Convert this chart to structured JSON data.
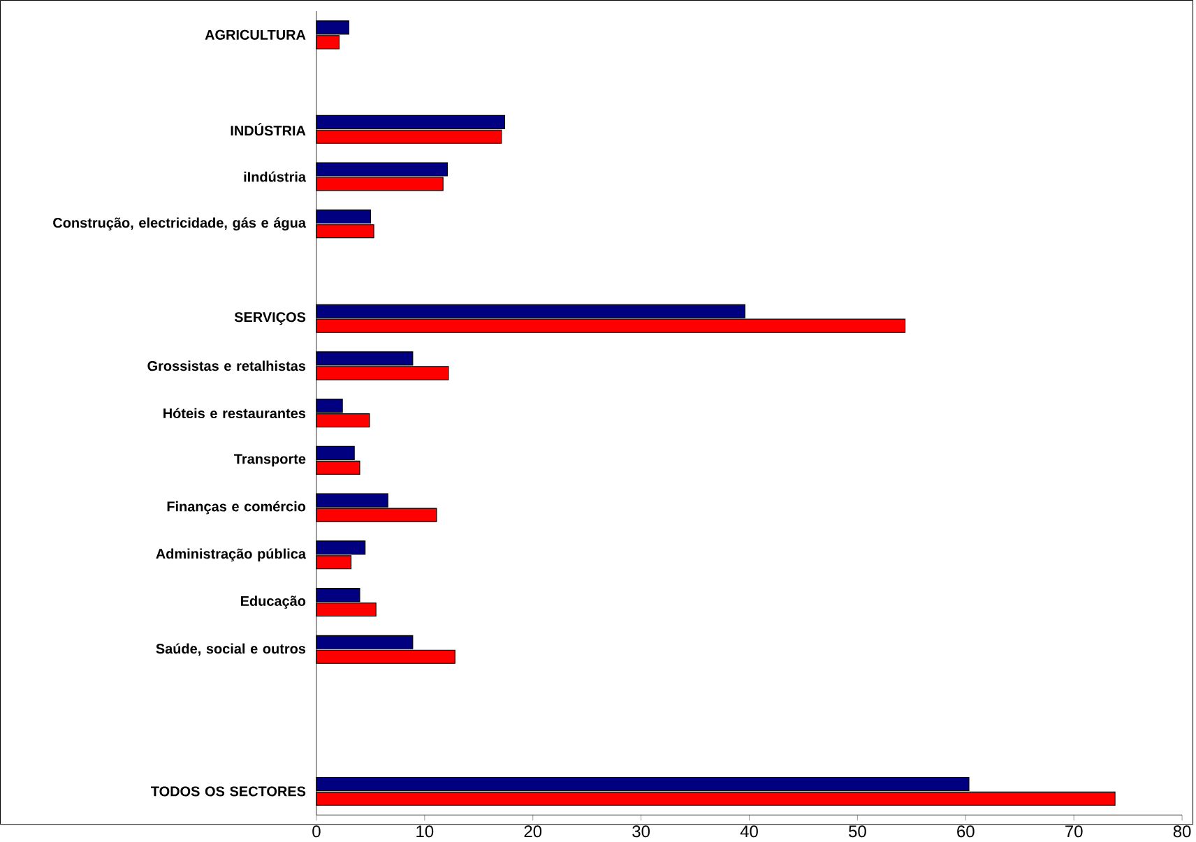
{
  "chart_data": {
    "type": "bar",
    "orientation": "horizontal",
    "categories": [
      "AGRICULTURA",
      null,
      "INDÚSTRIA",
      "iIndústria",
      "Construção, electricidade, gás e água",
      null,
      "SERVIÇOS",
      "Grossistas e retalhistas",
      "Hóteis e restaurantes",
      "Transporte",
      "Finanças e comércio",
      "Administração pública",
      "Educação",
      "Saúde, social e outros",
      null,
      null,
      "TODOS OS SECTORES"
    ],
    "series": [
      {
        "color": "#000080",
        "values": [
          3.0,
          null,
          17.4,
          12.1,
          5.0,
          null,
          39.6,
          8.9,
          2.4,
          3.5,
          6.6,
          4.5,
          4.0,
          8.9,
          null,
          null,
          60.3
        ]
      },
      {
        "color": "#ff0000",
        "values": [
          2.1,
          null,
          17.1,
          11.7,
          5.3,
          null,
          54.4,
          12.2,
          4.9,
          4.0,
          11.1,
          3.2,
          5.5,
          12.8,
          null,
          null,
          73.8
        ]
      }
    ],
    "xlim": [
      0,
      80
    ],
    "xticks": [
      0,
      10,
      20,
      30,
      40,
      50,
      60,
      70,
      80
    ],
    "grid": false
  }
}
